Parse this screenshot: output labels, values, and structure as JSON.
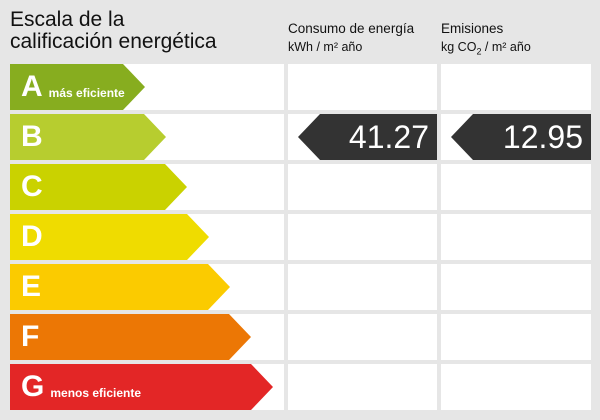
{
  "title_line1": "Escala de la",
  "title_line2": "calificación energética",
  "consumo": {
    "line1": "Consumo de energía",
    "line2": "kWh / m² año"
  },
  "emisiones": {
    "line1": "Emisiones",
    "line2a": "kg CO",
    "line2sub": "2",
    "line2b": " / m² año"
  },
  "ratings": [
    {
      "letter": "A",
      "label": "más eficiente",
      "color": "#87ad1f"
    },
    {
      "letter": "B",
      "label": "",
      "color": "#b7cd2f"
    },
    {
      "letter": "C",
      "label": "",
      "color": "#cad200"
    },
    {
      "letter": "D",
      "label": "",
      "color": "#efdc00"
    },
    {
      "letter": "E",
      "label": "",
      "color": "#fbcb00"
    },
    {
      "letter": "F",
      "label": "",
      "color": "#ec7705"
    },
    {
      "letter": "G",
      "label": "menos eficiente",
      "color": "#e32626"
    }
  ],
  "current_rating": "B",
  "consumo_value": "41.27",
  "emisiones_value": "12.95"
}
